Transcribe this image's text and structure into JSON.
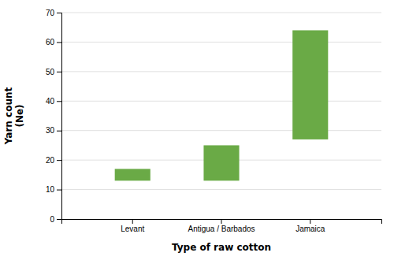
{
  "chart_data": {
    "type": "bar",
    "categories": [
      "Levant",
      "Antigua / Barbados",
      "Jamaica"
    ],
    "bottoms": [
      13,
      13,
      27
    ],
    "values": [
      17,
      25,
      64
    ],
    "color": "#6aaa46",
    "xlabel": "Type of raw cotton",
    "ylabel": "Yarn count\n(Ne)",
    "ylim": [
      0,
      70
    ],
    "yticks": [
      0,
      10,
      20,
      30,
      40,
      50,
      60,
      70
    ],
    "grid": true
  }
}
